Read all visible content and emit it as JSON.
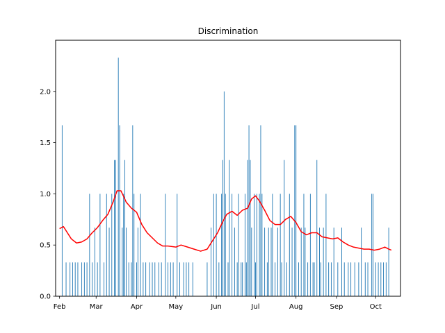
{
  "chart_data": {
    "type": "bar",
    "title": "Discrimination",
    "xlabel": "",
    "ylabel": "",
    "x_range": [
      "2021-01-29",
      "2021-10-20"
    ],
    "ylim": [
      0,
      2.5
    ],
    "y_ticks": [
      0.0,
      0.5,
      1.0,
      1.5,
      2.0
    ],
    "y_tick_labels": [
      "0.0",
      "0.5",
      "1.0",
      "1.5",
      "2.0"
    ],
    "x_ticks": [
      "2021-02-01",
      "2021-03-01",
      "2021-04-01",
      "2021-05-01",
      "2021-06-01",
      "2021-07-01",
      "2021-08-01",
      "2021-09-01",
      "2021-10-01"
    ],
    "x_tick_labels": [
      "Feb",
      "Mar",
      "Apr",
      "May",
      "Jun",
      "Jul",
      "Aug",
      "Sep",
      "Oct"
    ],
    "grid": false,
    "legend": "none",
    "series": [
      {
        "type": "bar",
        "color": "#1f77b4",
        "points": [
          {
            "x": "2021-02-03",
            "y": 1.67
          },
          {
            "x": "2021-02-06",
            "y": 0.33
          },
          {
            "x": "2021-02-09",
            "y": 0.33
          },
          {
            "x": "2021-02-11",
            "y": 0.33
          },
          {
            "x": "2021-02-13",
            "y": 0.33
          },
          {
            "x": "2021-02-15",
            "y": 0.33
          },
          {
            "x": "2021-02-18",
            "y": 0.33
          },
          {
            "x": "2021-02-20",
            "y": 0.33
          },
          {
            "x": "2021-02-22",
            "y": 0.33
          },
          {
            "x": "2021-02-24",
            "y": 1.0
          },
          {
            "x": "2021-02-26",
            "y": 0.33
          },
          {
            "x": "2021-02-28",
            "y": 0.67
          },
          {
            "x": "2021-03-02",
            "y": 0.33
          },
          {
            "x": "2021-03-04",
            "y": 1.0
          },
          {
            "x": "2021-03-07",
            "y": 0.33
          },
          {
            "x": "2021-03-09",
            "y": 1.0
          },
          {
            "x": "2021-03-11",
            "y": 0.67
          },
          {
            "x": "2021-03-13",
            "y": 1.0
          },
          {
            "x": "2021-03-15",
            "y": 1.33
          },
          {
            "x": "2021-03-16",
            "y": 1.33
          },
          {
            "x": "2021-03-18",
            "y": 2.33
          },
          {
            "x": "2021-03-19",
            "y": 1.67
          },
          {
            "x": "2021-03-21",
            "y": 0.67
          },
          {
            "x": "2021-03-22",
            "y": 1.0
          },
          {
            "x": "2021-03-23",
            "y": 1.33
          },
          {
            "x": "2021-03-24",
            "y": 0.67
          },
          {
            "x": "2021-03-26",
            "y": 0.33
          },
          {
            "x": "2021-03-28",
            "y": 0.33
          },
          {
            "x": "2021-03-29",
            "y": 1.67
          },
          {
            "x": "2021-03-30",
            "y": 1.0
          },
          {
            "x": "2021-04-01",
            "y": 0.33
          },
          {
            "x": "2021-04-02",
            "y": 0.67
          },
          {
            "x": "2021-04-04",
            "y": 1.0
          },
          {
            "x": "2021-04-06",
            "y": 0.33
          },
          {
            "x": "2021-04-08",
            "y": 0.33
          },
          {
            "x": "2021-04-11",
            "y": 0.33
          },
          {
            "x": "2021-04-13",
            "y": 0.33
          },
          {
            "x": "2021-04-15",
            "y": 0.33
          },
          {
            "x": "2021-04-18",
            "y": 0.33
          },
          {
            "x": "2021-04-20",
            "y": 0.33
          },
          {
            "x": "2021-04-23",
            "y": 1.0
          },
          {
            "x": "2021-04-25",
            "y": 0.33
          },
          {
            "x": "2021-04-27",
            "y": 0.33
          },
          {
            "x": "2021-04-29",
            "y": 0.33
          },
          {
            "x": "2021-05-02",
            "y": 1.0
          },
          {
            "x": "2021-05-04",
            "y": 0.33
          },
          {
            "x": "2021-05-07",
            "y": 0.33
          },
          {
            "x": "2021-05-09",
            "y": 0.33
          },
          {
            "x": "2021-05-11",
            "y": 0.33
          },
          {
            "x": "2021-05-14",
            "y": 0.33
          },
          {
            "x": "2021-05-25",
            "y": 0.33
          },
          {
            "x": "2021-05-28",
            "y": 0.67
          },
          {
            "x": "2021-05-30",
            "y": 1.0
          },
          {
            "x": "2021-06-01",
            "y": 1.0
          },
          {
            "x": "2021-06-03",
            "y": 0.33
          },
          {
            "x": "2021-06-05",
            "y": 1.0
          },
          {
            "x": "2021-06-06",
            "y": 1.33
          },
          {
            "x": "2021-06-07",
            "y": 2.0
          },
          {
            "x": "2021-06-08",
            "y": 1.0
          },
          {
            "x": "2021-06-10",
            "y": 0.33
          },
          {
            "x": "2021-06-11",
            "y": 1.33
          },
          {
            "x": "2021-06-13",
            "y": 1.0
          },
          {
            "x": "2021-06-15",
            "y": 0.67
          },
          {
            "x": "2021-06-17",
            "y": 0.33
          },
          {
            "x": "2021-06-18",
            "y": 1.0
          },
          {
            "x": "2021-06-20",
            "y": 0.33
          },
          {
            "x": "2021-06-21",
            "y": 0.33
          },
          {
            "x": "2021-06-23",
            "y": 1.0
          },
          {
            "x": "2021-06-24",
            "y": 0.33
          },
          {
            "x": "2021-06-25",
            "y": 1.33
          },
          {
            "x": "2021-06-26",
            "y": 1.67
          },
          {
            "x": "2021-06-27",
            "y": 1.33
          },
          {
            "x": "2021-06-28",
            "y": 0.67
          },
          {
            "x": "2021-06-30",
            "y": 1.0
          },
          {
            "x": "2021-07-01",
            "y": 0.33
          },
          {
            "x": "2021-07-02",
            "y": 1.0
          },
          {
            "x": "2021-07-04",
            "y": 1.0
          },
          {
            "x": "2021-07-05",
            "y": 1.67
          },
          {
            "x": "2021-07-06",
            "y": 1.0
          },
          {
            "x": "2021-07-08",
            "y": 0.67
          },
          {
            "x": "2021-07-10",
            "y": 0.33
          },
          {
            "x": "2021-07-11",
            "y": 0.67
          },
          {
            "x": "2021-07-13",
            "y": 0.67
          },
          {
            "x": "2021-07-14",
            "y": 1.0
          },
          {
            "x": "2021-07-16",
            "y": 0.33
          },
          {
            "x": "2021-07-18",
            "y": 0.67
          },
          {
            "x": "2021-07-20",
            "y": 1.0
          },
          {
            "x": "2021-07-21",
            "y": 0.33
          },
          {
            "x": "2021-07-23",
            "y": 1.33
          },
          {
            "x": "2021-07-25",
            "y": 0.33
          },
          {
            "x": "2021-07-27",
            "y": 1.0
          },
          {
            "x": "2021-07-29",
            "y": 0.67
          },
          {
            "x": "2021-07-31",
            "y": 1.67
          },
          {
            "x": "2021-08-01",
            "y": 1.67
          },
          {
            "x": "2021-08-03",
            "y": 0.33
          },
          {
            "x": "2021-08-05",
            "y": 0.67
          },
          {
            "x": "2021-08-07",
            "y": 1.0
          },
          {
            "x": "2021-08-08",
            "y": 0.67
          },
          {
            "x": "2021-08-10",
            "y": 0.33
          },
          {
            "x": "2021-08-12",
            "y": 1.0
          },
          {
            "x": "2021-08-14",
            "y": 0.33
          },
          {
            "x": "2021-08-15",
            "y": 0.33
          },
          {
            "x": "2021-08-17",
            "y": 1.33
          },
          {
            "x": "2021-08-19",
            "y": 0.67
          },
          {
            "x": "2021-08-20",
            "y": 0.33
          },
          {
            "x": "2021-08-22",
            "y": 0.67
          },
          {
            "x": "2021-08-24",
            "y": 1.0
          },
          {
            "x": "2021-08-26",
            "y": 0.33
          },
          {
            "x": "2021-08-28",
            "y": 0.33
          },
          {
            "x": "2021-08-30",
            "y": 0.67
          },
          {
            "x": "2021-09-02",
            "y": 0.33
          },
          {
            "x": "2021-09-05",
            "y": 0.67
          },
          {
            "x": "2021-09-07",
            "y": 0.33
          },
          {
            "x": "2021-09-10",
            "y": 0.33
          },
          {
            "x": "2021-09-12",
            "y": 0.33
          },
          {
            "x": "2021-09-15",
            "y": 0.33
          },
          {
            "x": "2021-09-18",
            "y": 0.33
          },
          {
            "x": "2021-09-20",
            "y": 0.67
          },
          {
            "x": "2021-09-23",
            "y": 0.33
          },
          {
            "x": "2021-09-25",
            "y": 0.33
          },
          {
            "x": "2021-09-28",
            "y": 1.0
          },
          {
            "x": "2021-09-29",
            "y": 1.0
          },
          {
            "x": "2021-10-01",
            "y": 0.33
          },
          {
            "x": "2021-10-03",
            "y": 0.33
          },
          {
            "x": "2021-10-05",
            "y": 0.33
          },
          {
            "x": "2021-10-07",
            "y": 0.33
          },
          {
            "x": "2021-10-09",
            "y": 0.33
          },
          {
            "x": "2021-10-11",
            "y": 0.67
          }
        ]
      },
      {
        "type": "line",
        "color": "#ff0000",
        "points": [
          {
            "x": "2021-02-01",
            "y": 0.66
          },
          {
            "x": "2021-02-04",
            "y": 0.68
          },
          {
            "x": "2021-02-07",
            "y": 0.62
          },
          {
            "x": "2021-02-10",
            "y": 0.56
          },
          {
            "x": "2021-02-14",
            "y": 0.52
          },
          {
            "x": "2021-02-18",
            "y": 0.53
          },
          {
            "x": "2021-02-22",
            "y": 0.56
          },
          {
            "x": "2021-02-26",
            "y": 0.62
          },
          {
            "x": "2021-03-02",
            "y": 0.67
          },
          {
            "x": "2021-03-06",
            "y": 0.74
          },
          {
            "x": "2021-03-10",
            "y": 0.8
          },
          {
            "x": "2021-03-14",
            "y": 0.92
          },
          {
            "x": "2021-03-17",
            "y": 1.03
          },
          {
            "x": "2021-03-20",
            "y": 1.03
          },
          {
            "x": "2021-03-24",
            "y": 0.92
          },
          {
            "x": "2021-03-28",
            "y": 0.86
          },
          {
            "x": "2021-04-01",
            "y": 0.82
          },
          {
            "x": "2021-04-05",
            "y": 0.7
          },
          {
            "x": "2021-04-09",
            "y": 0.62
          },
          {
            "x": "2021-04-13",
            "y": 0.57
          },
          {
            "x": "2021-04-17",
            "y": 0.52
          },
          {
            "x": "2021-04-21",
            "y": 0.49
          },
          {
            "x": "2021-04-25",
            "y": 0.49
          },
          {
            "x": "2021-05-01",
            "y": 0.48
          },
          {
            "x": "2021-05-05",
            "y": 0.5
          },
          {
            "x": "2021-05-10",
            "y": 0.48
          },
          {
            "x": "2021-05-15",
            "y": 0.46
          },
          {
            "x": "2021-05-20",
            "y": 0.44
          },
          {
            "x": "2021-05-25",
            "y": 0.46
          },
          {
            "x": "2021-05-29",
            "y": 0.54
          },
          {
            "x": "2021-06-02",
            "y": 0.62
          },
          {
            "x": "2021-06-06",
            "y": 0.73
          },
          {
            "x": "2021-06-09",
            "y": 0.8
          },
          {
            "x": "2021-06-13",
            "y": 0.83
          },
          {
            "x": "2021-06-17",
            "y": 0.79
          },
          {
            "x": "2021-06-21",
            "y": 0.84
          },
          {
            "x": "2021-06-25",
            "y": 0.86
          },
          {
            "x": "2021-06-28",
            "y": 0.95
          },
          {
            "x": "2021-07-01",
            "y": 0.98
          },
          {
            "x": "2021-07-04",
            "y": 0.93
          },
          {
            "x": "2021-07-08",
            "y": 0.84
          },
          {
            "x": "2021-07-12",
            "y": 0.74
          },
          {
            "x": "2021-07-16",
            "y": 0.7
          },
          {
            "x": "2021-07-20",
            "y": 0.7
          },
          {
            "x": "2021-07-24",
            "y": 0.75
          },
          {
            "x": "2021-07-28",
            "y": 0.78
          },
          {
            "x": "2021-08-01",
            "y": 0.72
          },
          {
            "x": "2021-08-05",
            "y": 0.63
          },
          {
            "x": "2021-08-09",
            "y": 0.6
          },
          {
            "x": "2021-08-13",
            "y": 0.62
          },
          {
            "x": "2021-08-17",
            "y": 0.62
          },
          {
            "x": "2021-08-21",
            "y": 0.58
          },
          {
            "x": "2021-08-25",
            "y": 0.57
          },
          {
            "x": "2021-08-29",
            "y": 0.56
          },
          {
            "x": "2021-09-02",
            "y": 0.57
          },
          {
            "x": "2021-09-06",
            "y": 0.53
          },
          {
            "x": "2021-09-10",
            "y": 0.5
          },
          {
            "x": "2021-09-14",
            "y": 0.48
          },
          {
            "x": "2021-09-18",
            "y": 0.47
          },
          {
            "x": "2021-09-22",
            "y": 0.46
          },
          {
            "x": "2021-09-26",
            "y": 0.46
          },
          {
            "x": "2021-09-30",
            "y": 0.45
          },
          {
            "x": "2021-10-04",
            "y": 0.46
          },
          {
            "x": "2021-10-08",
            "y": 0.48
          },
          {
            "x": "2021-10-11",
            "y": 0.46
          },
          {
            "x": "2021-10-13",
            "y": 0.45
          }
        ]
      }
    ]
  }
}
